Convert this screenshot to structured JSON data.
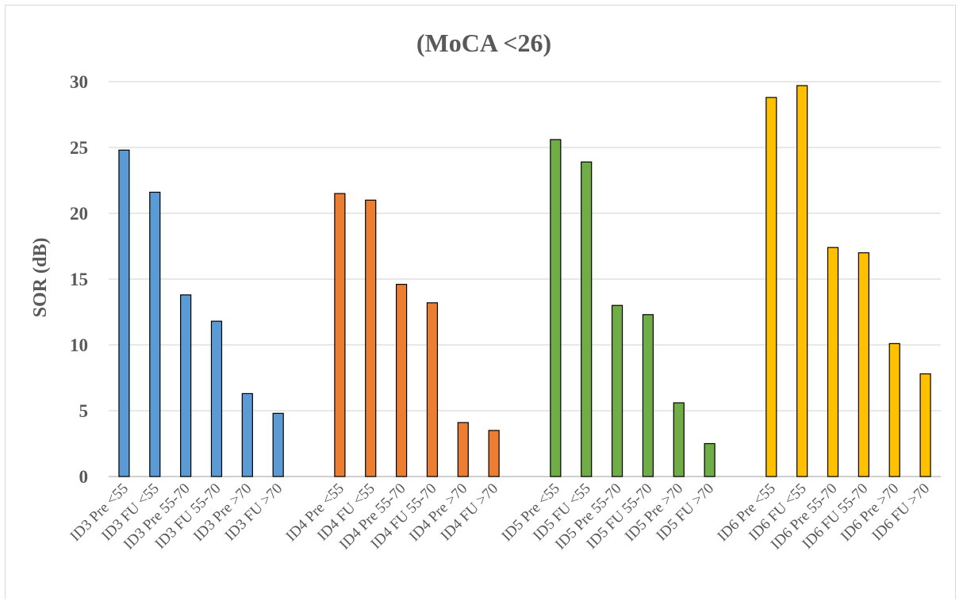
{
  "chart_data": {
    "type": "bar",
    "title": "(MoCA <26)",
    "xlabel": "",
    "ylabel": "SOR (dB)",
    "ylim": [
      0,
      30
    ],
    "yticks": [
      0,
      5,
      10,
      15,
      20,
      25,
      30
    ],
    "grid": true,
    "legend": "none",
    "groups": [
      {
        "color": "#5b9bd5",
        "categories": [
          "ID3 Pre <55",
          "ID3 FU <55",
          "ID3 Pre 55-70",
          "ID3 FU 55-70",
          "ID3 Pre >70",
          "ID3 FU >70"
        ],
        "values": [
          24.8,
          21.6,
          13.8,
          11.8,
          6.3,
          4.8
        ]
      },
      {
        "color": "#ed7d31",
        "categories": [
          "ID4 Pre <55",
          "ID4 FU <55",
          "ID4 Pre 55-70",
          "ID4 FU 55-70",
          "ID4 Pre >70",
          "ID4 FU >70"
        ],
        "values": [
          21.5,
          21.0,
          14.6,
          13.2,
          4.1,
          3.5
        ]
      },
      {
        "color": "#70ad47",
        "categories": [
          "ID5 Pre <55",
          "ID5 FU <55",
          "ID5 Pre 55-70",
          "ID5 FU 55-70",
          "ID5 Pre >70",
          "ID5 FU >70"
        ],
        "values": [
          25.6,
          23.9,
          13.0,
          12.3,
          5.6,
          2.5
        ]
      },
      {
        "color": "#ffc000",
        "categories": [
          "ID6 Pre <55",
          "ID6 FU <55",
          "ID6 Pre 55-70",
          "ID6 FU 55-70",
          "ID6 Pre >70",
          "ID6 FU >70"
        ],
        "values": [
          28.8,
          29.7,
          17.4,
          17.0,
          10.1,
          7.8
        ]
      }
    ]
  }
}
